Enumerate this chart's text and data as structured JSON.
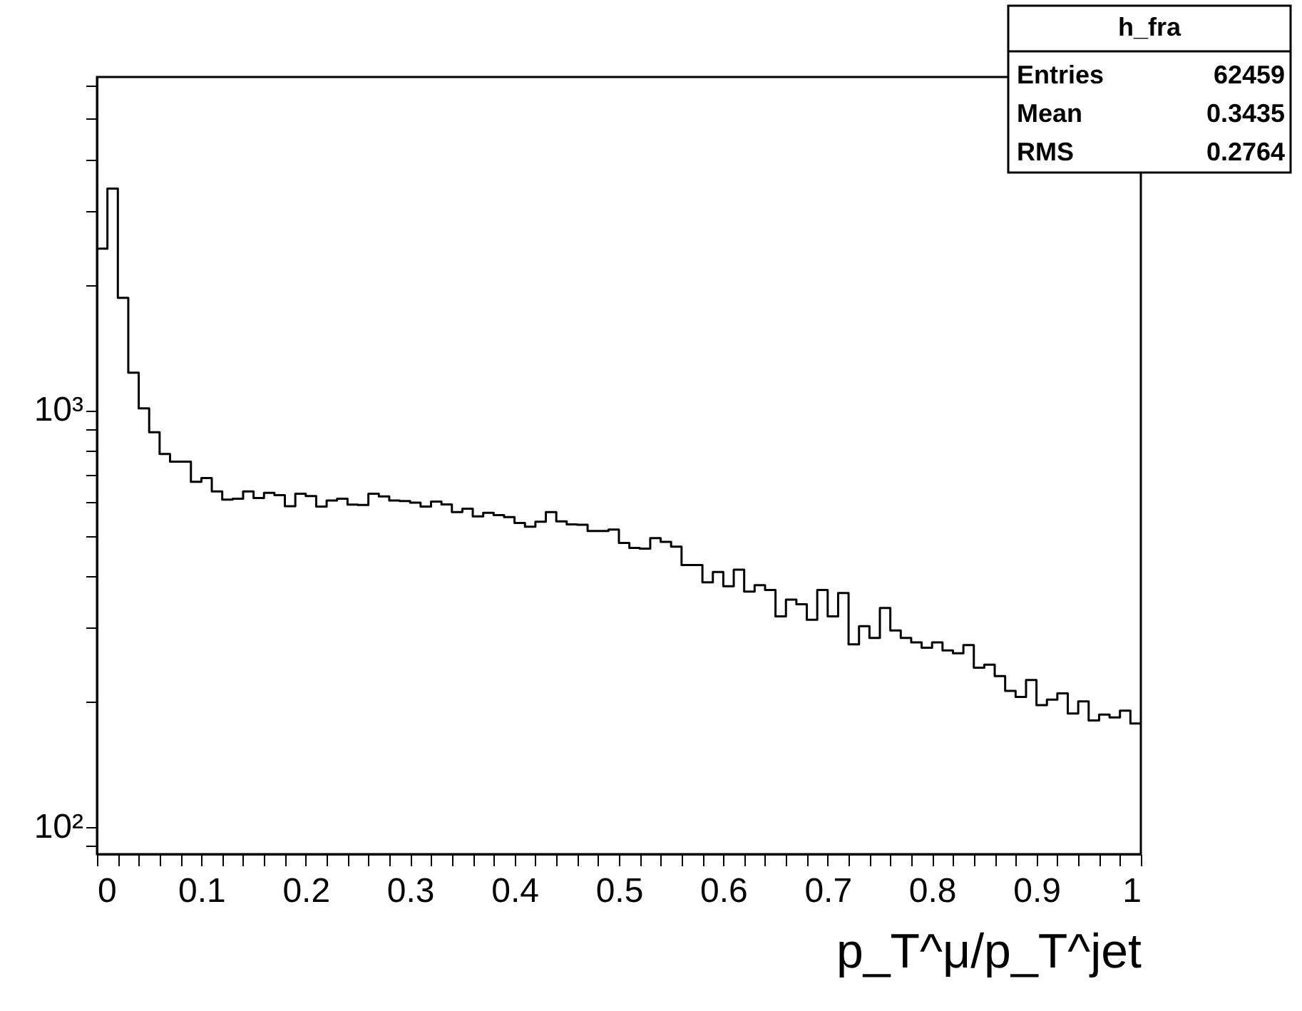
{
  "chart_data": {
    "type": "histogram",
    "xlabel": "p_T^μ/p_T^jet",
    "bins": [
      0,
      0.01,
      0.02,
      0.03,
      0.04,
      0.05,
      0.06,
      0.07,
      0.08,
      0.09,
      0.1,
      0.11,
      0.12,
      0.13,
      0.14,
      0.15,
      0.16,
      0.17,
      0.18,
      0.19,
      0.2,
      0.21,
      0.22,
      0.23,
      0.24,
      0.25,
      0.26,
      0.27,
      0.28,
      0.29,
      0.3,
      0.31,
      0.32,
      0.33,
      0.34,
      0.35,
      0.36,
      0.37,
      0.38,
      0.39,
      0.4,
      0.41,
      0.42,
      0.43,
      0.44,
      0.45,
      0.46,
      0.47,
      0.48,
      0.49,
      0.5,
      0.51,
      0.52,
      0.53,
      0.54,
      0.55,
      0.56,
      0.57,
      0.58,
      0.59,
      0.6,
      0.61,
      0.62,
      0.63,
      0.64,
      0.65,
      0.66,
      0.67,
      0.68,
      0.69,
      0.7,
      0.71,
      0.72,
      0.73,
      0.74,
      0.75,
      0.76,
      0.77,
      0.78,
      0.79,
      0.8,
      0.81,
      0.82,
      0.83,
      0.84,
      0.85,
      0.86,
      0.87,
      0.88,
      0.89,
      0.9,
      0.91,
      0.92,
      0.93,
      0.94,
      0.95,
      0.96,
      0.97,
      0.98,
      0.99,
      1
    ],
    "values": [
      2440,
      3400,
      1860,
      1230,
      1010,
      885,
      785,
      752,
      752,
      673,
      687,
      638,
      610,
      613,
      638,
      615,
      633,
      625,
      588,
      630,
      622,
      587,
      607,
      613,
      593,
      592,
      630,
      621,
      607,
      605,
      600,
      587,
      603,
      594,
      569,
      580,
      556,
      567,
      560,
      554,
      536,
      525,
      540,
      569,
      541,
      532,
      531,
      513,
      513,
      517,
      480,
      467,
      465,
      493,
      483,
      470,
      425,
      425,
      386,
      409,
      378,
      414,
      367,
      380,
      370,
      320,
      351,
      342,
      314,
      370,
      320,
      364,
      274,
      303,
      284,
      335,
      296,
      284,
      277,
      269,
      277,
      265,
      261,
      273,
      241,
      245,
      230,
      212,
      205,
      225,
      196,
      202,
      209,
      187,
      200,
      180,
      186,
      183,
      190,
      177
    ],
    "color": "#000000",
    "xlim": [
      0,
      1
    ],
    "xticks": [
      0,
      {
        "value": 0.02,
        "label": null
      },
      {
        "value": 0.04,
        "label": null
      },
      {
        "value": 0.06,
        "label": null
      },
      {
        "value": 0.08,
        "label": null
      },
      0.1,
      {
        "value": 0.12,
        "label": null
      },
      {
        "value": 0.14,
        "label": null
      },
      {
        "value": 0.16,
        "label": null
      },
      {
        "value": 0.18,
        "label": null
      },
      0.2,
      {
        "value": 0.22,
        "label": null
      },
      {
        "value": 0.24,
        "label": null
      },
      {
        "value": 0.26,
        "label": null
      },
      {
        "value": 0.28,
        "label": null
      },
      0.3,
      {
        "value": 0.32,
        "label": null
      },
      {
        "value": 0.34,
        "label": null
      },
      {
        "value": 0.36,
        "label": null
      },
      {
        "value": 0.38,
        "label": null
      },
      0.4,
      {
        "value": 0.42,
        "label": null
      },
      {
        "value": 0.44,
        "label": null
      },
      {
        "value": 0.46,
        "label": null
      },
      {
        "value": 0.48,
        "label": null
      },
      0.5,
      {
        "value": 0.52,
        "label": null
      },
      {
        "value": 0.54,
        "label": null
      },
      {
        "value": 0.56,
        "label": null
      },
      {
        "value": 0.58,
        "label": null
      },
      0.6,
      {
        "value": 0.62,
        "label": null
      },
      {
        "value": 0.64,
        "label": null
      },
      {
        "value": 0.66,
        "label": null
      },
      {
        "value": 0.68,
        "label": null
      },
      0.7,
      {
        "value": 0.72,
        "label": null
      },
      {
        "value": 0.74,
        "label": null
      },
      {
        "value": 0.76,
        "label": null
      },
      {
        "value": 0.78,
        "label": null
      },
      0.8,
      {
        "value": 0.82,
        "label": null
      },
      {
        "value": 0.84,
        "label": null
      },
      {
        "value": 0.86,
        "label": null
      },
      {
        "value": 0.88,
        "label": null
      },
      0.9,
      {
        "value": 0.92,
        "label": null
      },
      {
        "value": 0.94,
        "label": null
      },
      {
        "value": 0.96,
        "label": null
      },
      {
        "value": 0.98,
        "label": null
      },
      1
    ],
    "ylim": [
      86,
      6300
    ],
    "yticks": [
      {
        "value": 90,
        "label": null
      },
      {
        "value": 100,
        "label": "10²"
      },
      {
        "value": 200,
        "label": null
      },
      {
        "value": 300,
        "label": null
      },
      {
        "value": 400,
        "label": null
      },
      {
        "value": 500,
        "label": null
      },
      {
        "value": 600,
        "label": null
      },
      {
        "value": 700,
        "label": null
      },
      {
        "value": 800,
        "label": null
      },
      {
        "value": 900,
        "label": null
      },
      {
        "value": 1000,
        "label": "10³"
      },
      {
        "value": 2000,
        "label": null
      },
      {
        "value": 3000,
        "label": null
      },
      {
        "value": 4000,
        "label": null
      },
      {
        "value": 5000,
        "label": null
      },
      {
        "value": 6000,
        "label": null
      }
    ],
    "log": "y",
    "grid": false,
    "annotations": [
      "h_fra",
      "Entries",
      "62459",
      "Mean",
      "0.3435",
      "RMS",
      "0.2764"
    ]
  }
}
